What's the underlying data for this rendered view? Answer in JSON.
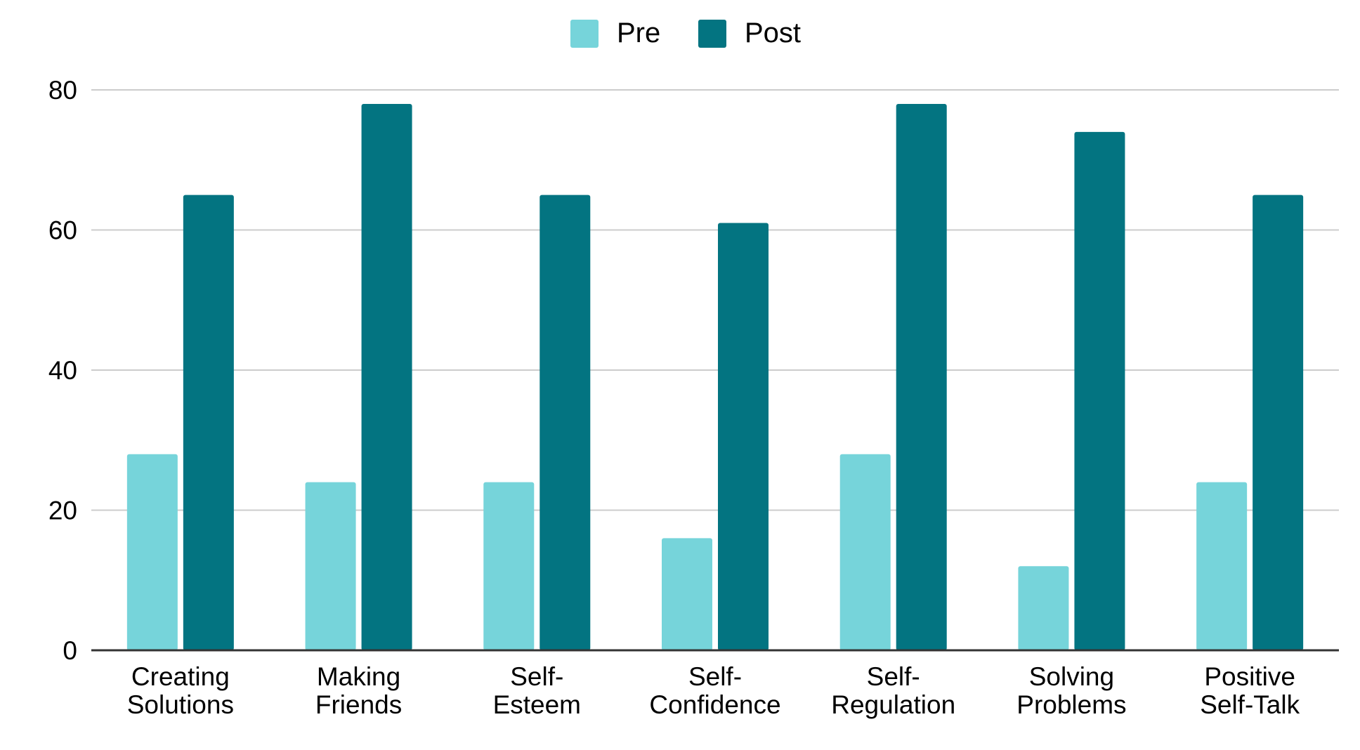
{
  "chart_data": {
    "type": "bar",
    "categories": [
      [
        "Creating",
        "Solutions"
      ],
      [
        "Making",
        "Friends"
      ],
      [
        "Self-",
        "Esteem"
      ],
      [
        "Self-",
        "Confidence"
      ],
      [
        "Self-",
        "Regulation"
      ],
      [
        "Solving",
        "Problems"
      ],
      [
        "Positive",
        "Self-Talk"
      ]
    ],
    "series": [
      {
        "name": "Pre",
        "color": "#76d4da",
        "values": [
          28,
          24,
          24,
          16,
          28,
          12,
          24
        ]
      },
      {
        "name": "Post",
        "color": "#037481",
        "values": [
          65,
          78,
          65,
          61,
          78,
          74,
          65
        ]
      }
    ],
    "ylim": [
      0,
      80
    ],
    "yticks": [
      "0",
      "20",
      "40",
      "60",
      "80"
    ],
    "grid": true,
    "legend_position": "top-center",
    "title": "",
    "xlabel": "",
    "ylabel": ""
  }
}
